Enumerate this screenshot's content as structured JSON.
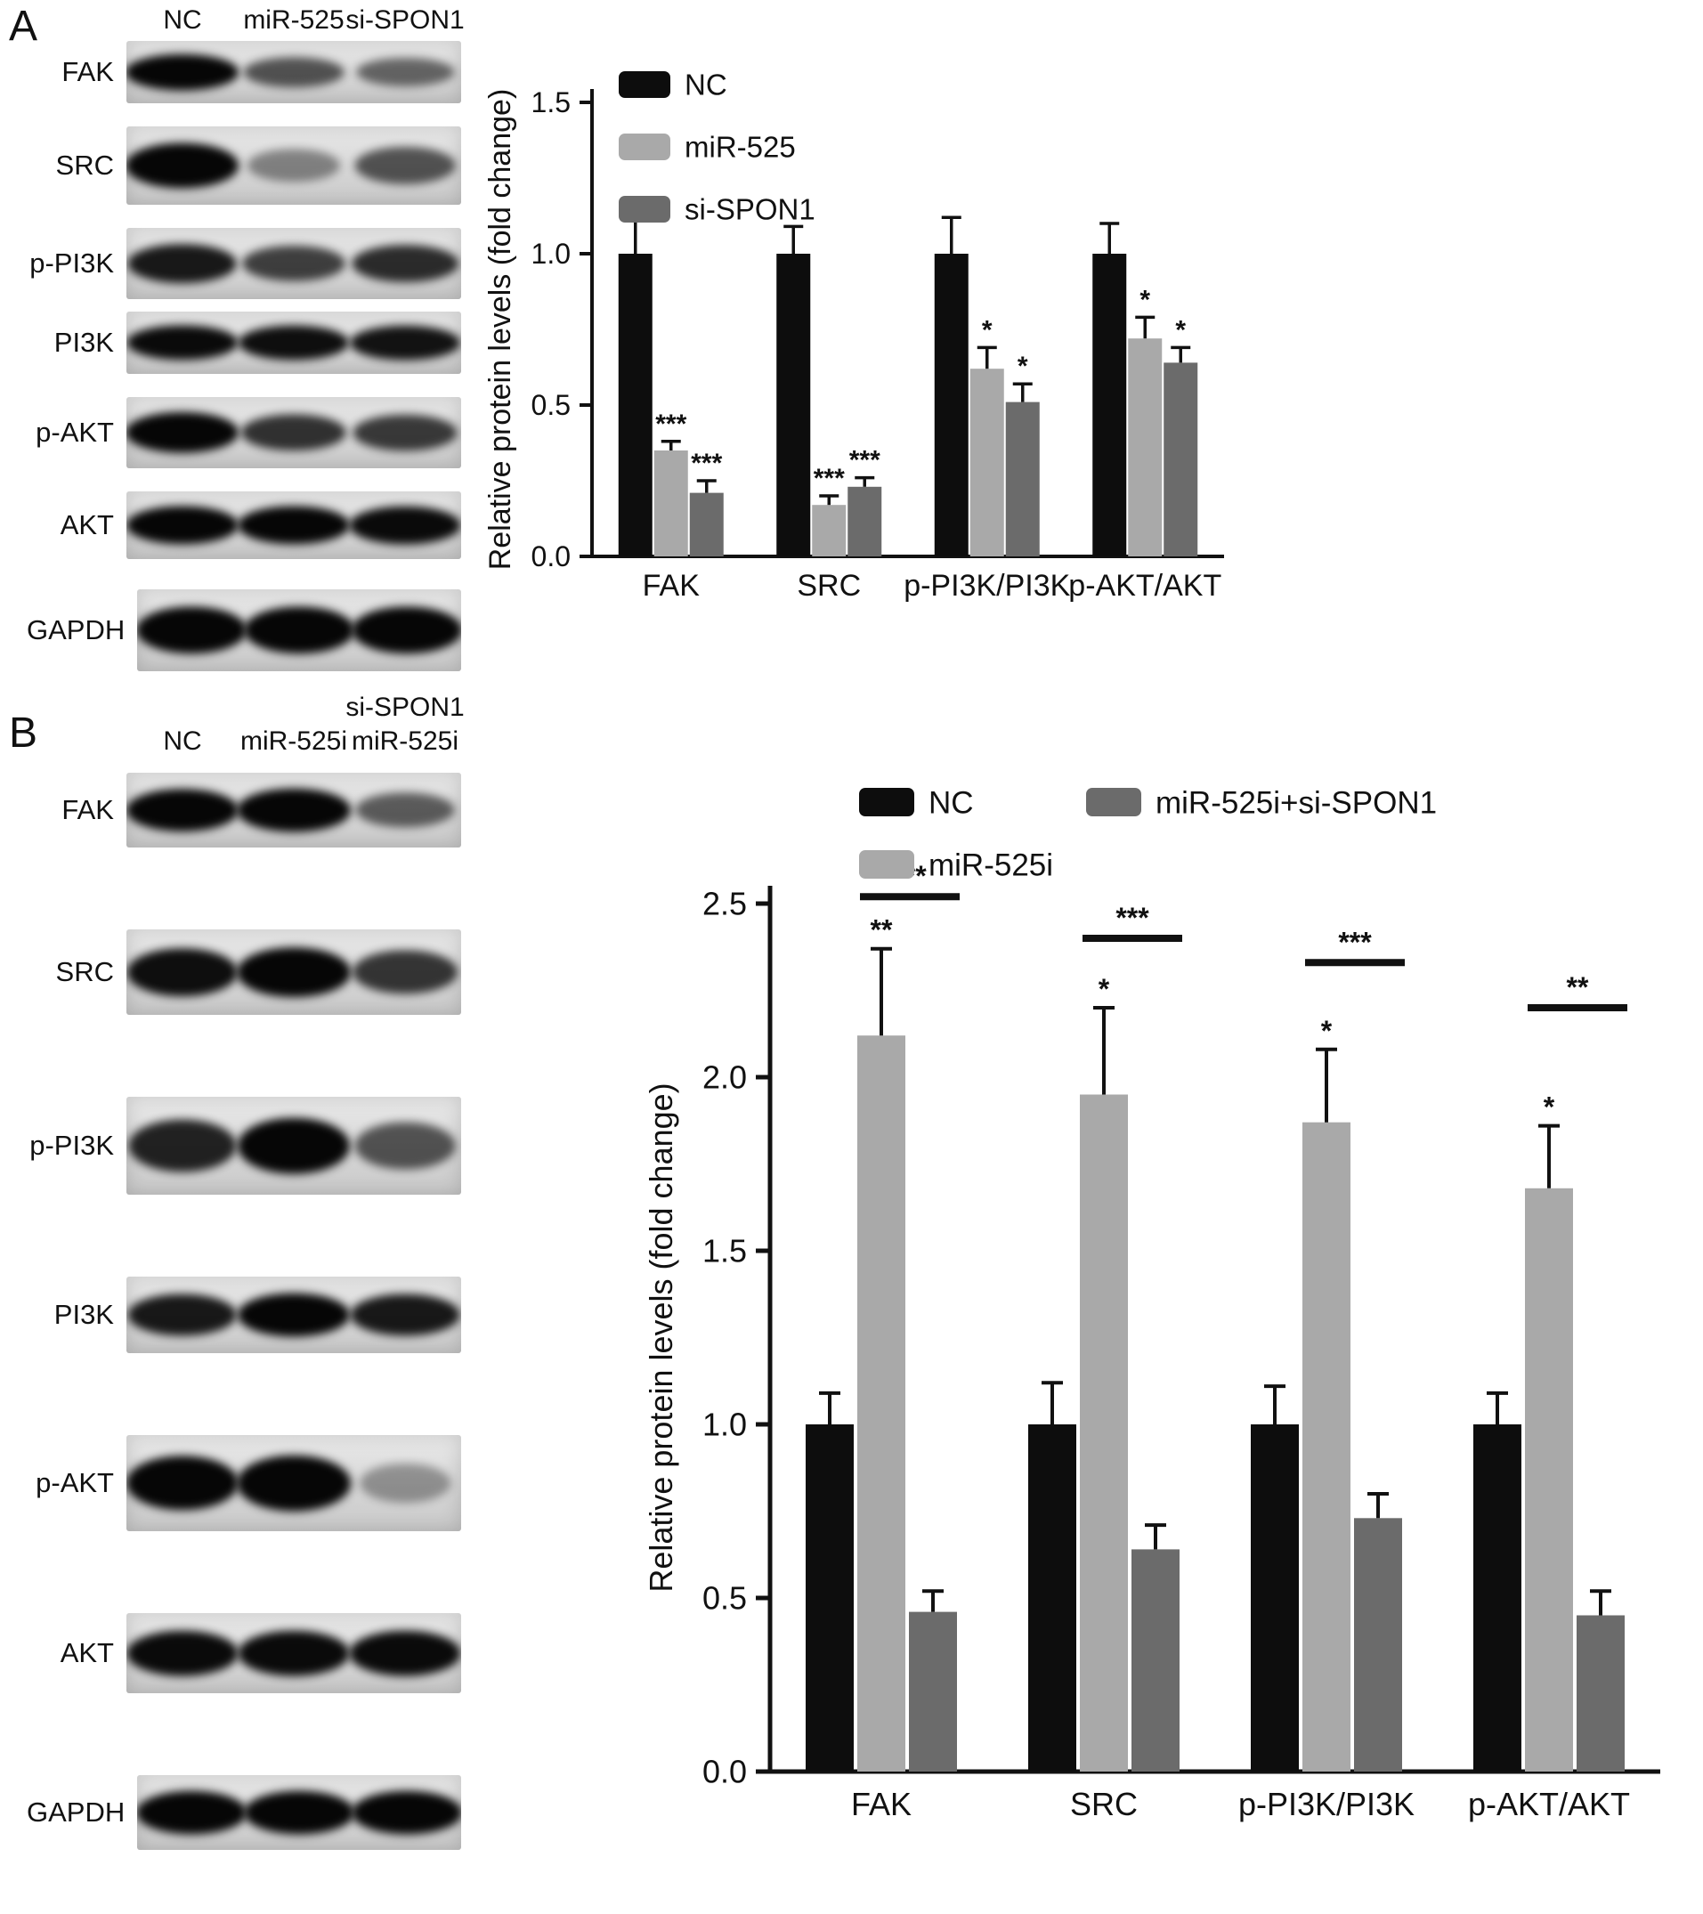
{
  "panelA": {
    "label": "A",
    "lanes": [
      "NC",
      "miR-525",
      "si-SPON1"
    ],
    "blots": [
      {
        "protein": "FAK",
        "bands": [
          1.0,
          0.55,
          0.45
        ]
      },
      {
        "protein": "SRC",
        "bands": [
          1.0,
          0.3,
          0.55
        ]
      },
      {
        "protein": "p-PI3K",
        "bands": [
          0.85,
          0.65,
          0.75
        ]
      },
      {
        "protein": "PI3K",
        "bands": [
          0.92,
          0.9,
          0.88
        ]
      },
      {
        "protein": "p-AKT",
        "bands": [
          1.0,
          0.72,
          0.68
        ]
      },
      {
        "protein": "AKT",
        "bands": [
          0.95,
          0.95,
          0.92
        ]
      },
      {
        "protein": "GAPDH",
        "bands": [
          1.0,
          1.0,
          1.0
        ]
      }
    ]
  },
  "panelB": {
    "label": "B",
    "lanes": [
      "NC",
      "miR-525i"
    ],
    "lane3_top": "si-SPON1",
    "lane3_bottom": "miR-525i",
    "blots": [
      {
        "protein": "FAK",
        "bands": [
          0.95,
          1.0,
          0.5
        ]
      },
      {
        "protein": "SRC",
        "bands": [
          0.9,
          1.0,
          0.7
        ]
      },
      {
        "protein": "p-PI3K",
        "bands": [
          0.8,
          0.95,
          0.55
        ]
      },
      {
        "protein": "PI3K",
        "bands": [
          0.85,
          0.95,
          0.85
        ]
      },
      {
        "protein": "p-AKT",
        "bands": [
          0.95,
          1.0,
          0.22
        ]
      },
      {
        "protein": "AKT",
        "bands": [
          0.92,
          0.92,
          0.92
        ]
      },
      {
        "protein": "GAPDH",
        "bands": [
          1.0,
          1.0,
          1.0
        ]
      }
    ]
  },
  "chart_data": [
    {
      "id": "A",
      "type": "bar",
      "title": "",
      "ylabel": "Relative protein levels (fold change)",
      "xlabel": "",
      "ylim": [
        0,
        1.5
      ],
      "yticks": [
        0.0,
        0.5,
        1.0,
        1.5
      ],
      "grid": false,
      "legend_position": "upper-left",
      "categories": [
        "FAK",
        "SRC",
        "p-PI3K/PI3K",
        "p-AKT/AKT"
      ],
      "series": [
        {
          "name": "NC",
          "color": "#0d0d0d",
          "values": [
            1.0,
            1.0,
            1.0,
            1.0
          ],
          "errors": [
            0.13,
            0.09,
            0.12,
            0.1
          ],
          "sig": [
            "",
            "",
            "",
            ""
          ]
        },
        {
          "name": "miR-525",
          "color": "#a9a9a9",
          "values": [
            0.35,
            0.17,
            0.62,
            0.72
          ],
          "errors": [
            0.03,
            0.03,
            0.07,
            0.07
          ],
          "sig": [
            "***",
            "***",
            "*",
            "*"
          ]
        },
        {
          "name": "si-SPON1",
          "color": "#6b6b6b",
          "values": [
            0.21,
            0.23,
            0.51,
            0.64
          ],
          "errors": [
            0.04,
            0.03,
            0.06,
            0.05
          ],
          "sig": [
            "***",
            "***",
            "*",
            "*"
          ]
        }
      ],
      "brackets": []
    },
    {
      "id": "B",
      "type": "bar",
      "title": "",
      "ylabel": "Relative protein levels (fold change)",
      "xlabel": "",
      "ylim": [
        0,
        2.5
      ],
      "yticks": [
        0.0,
        0.5,
        1.0,
        1.5,
        2.0,
        2.5
      ],
      "grid": false,
      "legend_position": "top",
      "categories": [
        "FAK",
        "SRC",
        "p-PI3K/PI3K",
        "p-AKT/AKT"
      ],
      "series": [
        {
          "name": "NC",
          "color": "#0d0d0d",
          "values": [
            1.0,
            1.0,
            1.0,
            1.0
          ],
          "errors": [
            0.09,
            0.12,
            0.11,
            0.09
          ],
          "sig": [
            "",
            "",
            "",
            ""
          ]
        },
        {
          "name": "miR-525i",
          "color": "#a9a9a9",
          "values": [
            2.12,
            1.95,
            1.87,
            1.68
          ],
          "errors": [
            0.25,
            0.25,
            0.21,
            0.18
          ],
          "sig": [
            "**",
            "*",
            "*",
            "*"
          ]
        },
        {
          "name": "miR-525i+si-SPON1",
          "color": "#6b6b6b",
          "values": [
            0.46,
            0.64,
            0.73,
            0.45
          ],
          "errors": [
            0.06,
            0.07,
            0.07,
            0.07
          ],
          "sig": [
            "",
            "",
            "",
            ""
          ]
        }
      ],
      "brackets": [
        {
          "category": 0,
          "from_series": 1,
          "to_series": 2,
          "label": "***",
          "y": 2.52
        },
        {
          "category": 1,
          "from_series": 1,
          "to_series": 2,
          "label": "***",
          "y": 2.4
        },
        {
          "category": 2,
          "from_series": 1,
          "to_series": 2,
          "label": "***",
          "y": 2.33
        },
        {
          "category": 3,
          "from_series": 1,
          "to_series": 2,
          "label": "**",
          "y": 2.2
        }
      ]
    }
  ]
}
